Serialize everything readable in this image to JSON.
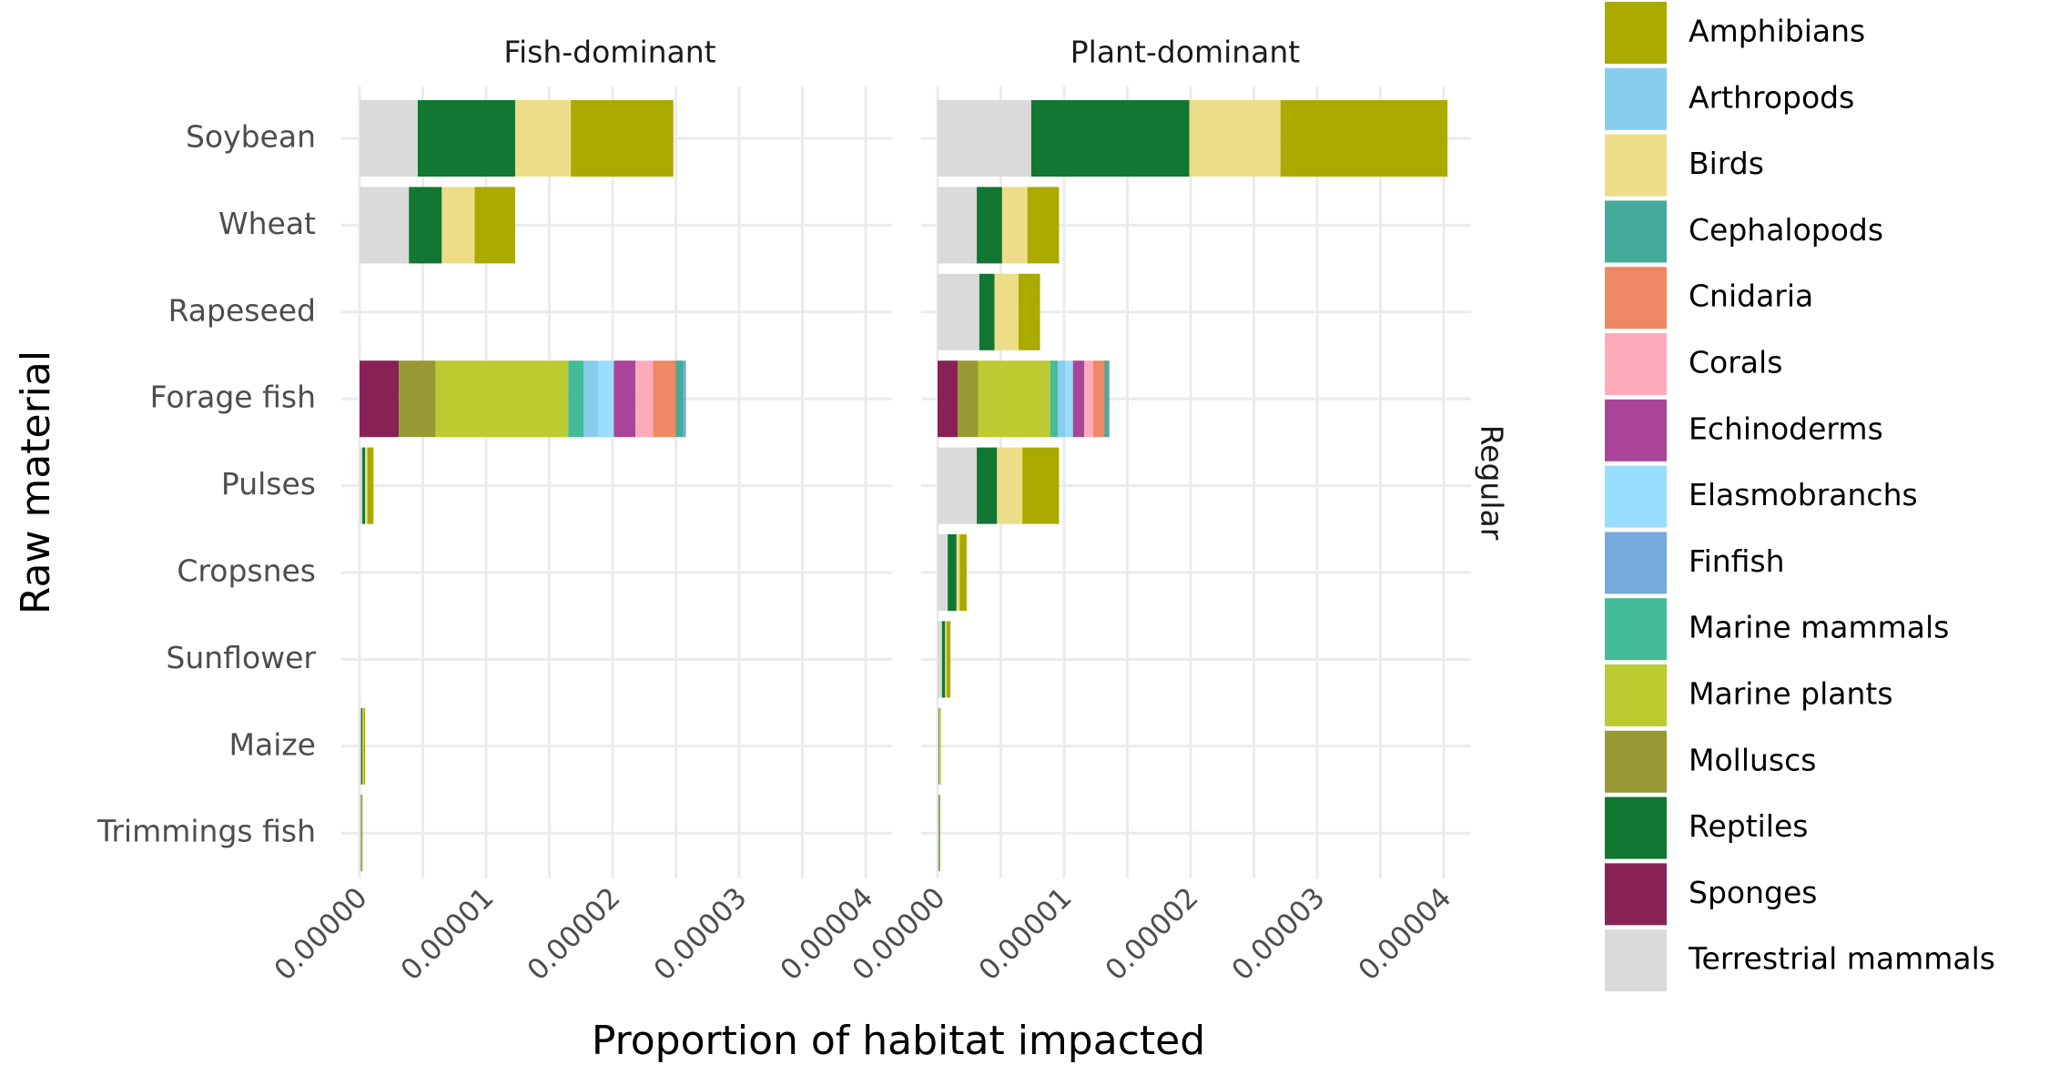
{
  "chart_data": {
    "type": "bar",
    "orientation": "horizontal",
    "stacked": true,
    "facets": [
      "Fish-dominant",
      "Plant-dominant"
    ],
    "row_facet": "Regular",
    "xlabel": "Proportion of habitat impacted",
    "ylabel": "Raw material",
    "xlim": [
      0,
      4e-05
    ],
    "x_ticks": [
      "0.00000",
      "0.00001",
      "0.00002",
      "0.00003",
      "0.00004"
    ],
    "categories": [
      "Soybean",
      "Wheat",
      "Rapeseed",
      "Forage fish",
      "Pulses",
      "Cropsnes",
      "Sunflower",
      "Maize",
      "Trimmings fish"
    ],
    "legend_position": "right",
    "grid": true,
    "series": [
      {
        "name": "Terrestrial mammals",
        "color": "#dadada",
        "values": {
          "Fish-dominant": [
            4.6e-06,
            3.9e-06,
            0,
            0,
            2.2e-07,
            0,
            0,
            1.2e-07,
            1.2e-07
          ],
          "Plant-dominant": [
            7.4e-06,
            3.1e-06,
            3.3e-06,
            0,
            3.1e-06,
            8e-07,
            3.5e-07,
            1e-07,
            1e-07
          ]
        }
      },
      {
        "name": "Sponges",
        "color": "#882255",
        "values": {
          "Fish-dominant": [
            0,
            0,
            0,
            3.1e-06,
            0,
            0,
            0,
            0,
            0
          ],
          "Plant-dominant": [
            0,
            0,
            0,
            1.6e-06,
            0,
            0,
            0,
            0,
            0
          ]
        }
      },
      {
        "name": "Molluscs",
        "color": "#999933",
        "values": {
          "Fish-dominant": [
            0,
            0,
            0,
            2.9e-06,
            0,
            0,
            0,
            0,
            0
          ],
          "Plant-dominant": [
            0,
            0,
            0,
            1.6e-06,
            0,
            0,
            0,
            0,
            0
          ]
        }
      },
      {
        "name": "Marine plants",
        "color": "#bccb32",
        "values": {
          "Fish-dominant": [
            0,
            0,
            0,
            1.05e-05,
            0,
            0,
            0,
            0,
            0
          ],
          "Plant-dominant": [
            0,
            0,
            0,
            5.7e-06,
            0,
            0,
            0,
            0,
            0
          ]
        }
      },
      {
        "name": "Marine mammals",
        "color": "#44bb99",
        "values": {
          "Fish-dominant": [
            0,
            0,
            0,
            1.2e-06,
            0,
            0,
            0,
            0,
            0
          ],
          "Plant-dominant": [
            0,
            0,
            0,
            6e-07,
            0,
            0,
            0,
            0,
            0
          ]
        }
      },
      {
        "name": "Arthropods",
        "color": "#88ccee",
        "values": {
          "Fish-dominant": [
            0,
            0,
            0,
            1.2e-06,
            0,
            0,
            0,
            0,
            0
          ],
          "Plant-dominant": [
            0,
            0,
            0,
            6e-07,
            0,
            0,
            0,
            0,
            0
          ]
        }
      },
      {
        "name": "Elasmobranchs",
        "color": "#99ddff",
        "values": {
          "Fish-dominant": [
            0,
            0,
            0,
            1.2e-06,
            0,
            0,
            0,
            0,
            0
          ],
          "Plant-dominant": [
            0,
            0,
            0,
            6e-07,
            0,
            0,
            0,
            0,
            0
          ]
        }
      },
      {
        "name": "Echinoderms",
        "color": "#aa4499",
        "values": {
          "Fish-dominant": [
            0,
            0,
            0,
            1.7e-06,
            0,
            0,
            0,
            0,
            0
          ],
          "Plant-dominant": [
            0,
            0,
            0,
            9e-07,
            0,
            0,
            0,
            0,
            0
          ]
        }
      },
      {
        "name": "Corals",
        "color": "#ffaabb",
        "values": {
          "Fish-dominant": [
            0,
            0,
            0,
            1.4e-06,
            0,
            0,
            0,
            0,
            0
          ],
          "Plant-dominant": [
            0,
            0,
            0,
            7e-07,
            0,
            0,
            0,
            0,
            0
          ]
        }
      },
      {
        "name": "Cnidaria",
        "color": "#ee8866",
        "values": {
          "Fish-dominant": [
            0,
            0,
            0,
            1.8e-06,
            0,
            0,
            0,
            0,
            0
          ],
          "Plant-dominant": [
            0,
            0,
            0,
            9e-07,
            0,
            0,
            0,
            0,
            0
          ]
        }
      },
      {
        "name": "Cephalopods",
        "color": "#44aa99",
        "values": {
          "Fish-dominant": [
            0,
            0,
            0,
            6e-07,
            0,
            0,
            0,
            0,
            0
          ],
          "Plant-dominant": [
            0,
            0,
            0,
            3e-07,
            0,
            0,
            0,
            0,
            0
          ]
        }
      },
      {
        "name": "Finfish",
        "color": "#77aadd",
        "values": {
          "Fish-dominant": [
            0,
            0,
            0,
            2e-07,
            0,
            0,
            0,
            0,
            0
          ],
          "Plant-dominant": [
            0,
            0,
            0,
            1e-07,
            0,
            0,
            0,
            0,
            0
          ]
        }
      },
      {
        "name": "Reptiles",
        "color": "#117733",
        "values": {
          "Fish-dominant": [
            7.7e-06,
            2.6e-06,
            0,
            0,
            2.2e-07,
            0,
            0,
            1.2e-07,
            4e-08
          ],
          "Plant-dominant": [
            1.25e-05,
            2e-06,
            1.2e-06,
            0,
            1.6e-06,
            7e-07,
            2.5e-07,
            5e-08,
            4e-08
          ]
        }
      },
      {
        "name": "Birds",
        "color": "#eedd88",
        "values": {
          "Fish-dominant": [
            4.4e-06,
            2.6e-06,
            0,
            0,
            1.8e-07,
            0,
            0,
            8e-08,
            2e-08
          ],
          "Plant-dominant": [
            7.2e-06,
            2e-06,
            1.9e-06,
            0,
            2e-06,
            2.5e-07,
            1.2e-07,
            5e-08,
            2e-08
          ]
        }
      },
      {
        "name": "Amphibians",
        "color": "#aaaa00",
        "values": {
          "Fish-dominant": [
            8.1e-06,
            3.2e-06,
            0,
            0,
            4.8e-07,
            0,
            0,
            1.2e-07,
            2e-08
          ],
          "Plant-dominant": [
            1.32e-05,
            2.5e-06,
            1.7e-06,
            0,
            2.9e-06,
            5.5e-07,
            3e-07,
            5e-08,
            2e-08
          ]
        }
      }
    ],
    "legend": [
      "Amphibians",
      "Arthropods",
      "Birds",
      "Cephalopods",
      "Cnidaria",
      "Corals",
      "Echinoderms",
      "Elasmobranchs",
      "Finfish",
      "Marine mammals",
      "Marine plants",
      "Molluscs",
      "Reptiles",
      "Sponges",
      "Terrestrial mammals"
    ]
  }
}
